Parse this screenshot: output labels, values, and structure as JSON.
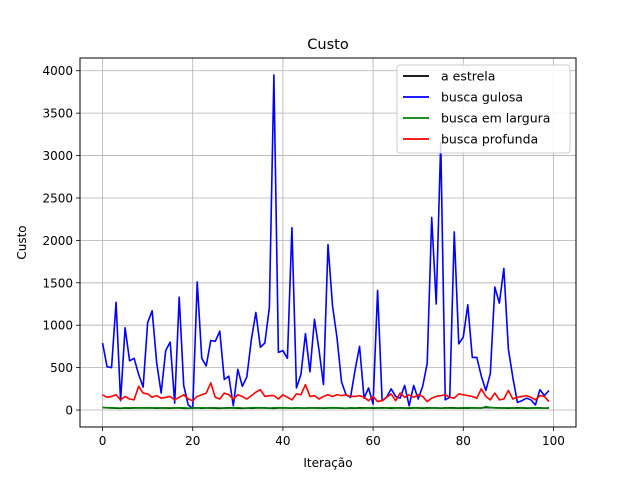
{
  "chart_data": {
    "type": "line",
    "title": "Custo",
    "xlabel": "Iteração",
    "ylabel": "Custo",
    "xlim": [
      -5,
      105
    ],
    "ylim": [
      -200,
      4150
    ],
    "xticks": [
      0,
      20,
      40,
      60,
      80,
      100
    ],
    "yticks": [
      0,
      500,
      1000,
      1500,
      2000,
      2500,
      3000,
      3500,
      4000
    ],
    "grid": true,
    "legend": "top-right",
    "x": [
      0,
      1,
      2,
      3,
      4,
      5,
      6,
      7,
      8,
      9,
      10,
      11,
      12,
      13,
      14,
      15,
      16,
      17,
      18,
      19,
      20,
      21,
      22,
      23,
      24,
      25,
      26,
      27,
      28,
      29,
      30,
      31,
      32,
      33,
      34,
      35,
      36,
      37,
      38,
      39,
      40,
      41,
      42,
      43,
      44,
      45,
      46,
      47,
      48,
      49,
      50,
      51,
      52,
      53,
      54,
      55,
      56,
      57,
      58,
      59,
      60,
      61,
      62,
      63,
      64,
      65,
      66,
      67,
      68,
      69,
      70,
      71,
      72,
      73,
      74,
      75,
      76,
      77,
      78,
      79,
      80,
      81,
      82,
      83,
      84,
      85,
      86,
      87,
      88,
      89,
      90,
      91,
      92,
      93,
      94,
      95,
      96,
      97,
      98,
      99
    ],
    "series": [
      {
        "name": "a estrela",
        "color": "#000000",
        "values": [
          30,
          26,
          24,
          22,
          20,
          24,
          22,
          26,
          25,
          24,
          26,
          24,
          22,
          24,
          25,
          22,
          26,
          24,
          22,
          20,
          24,
          26,
          22,
          24,
          25,
          22,
          20,
          24,
          26,
          25,
          22,
          20,
          24,
          22,
          24,
          26,
          25,
          22,
          20,
          24,
          26,
          24,
          22,
          25,
          24,
          22,
          26,
          24,
          25,
          22,
          24,
          26,
          25,
          22,
          20,
          24,
          22,
          26,
          25,
          24,
          22,
          24,
          26,
          25,
          22,
          24,
          26,
          24,
          22,
          25,
          24,
          22,
          26,
          24,
          25,
          22,
          24,
          26,
          25,
          22,
          24,
          22,
          26,
          24,
          25,
          30,
          28,
          26,
          25,
          24,
          22,
          24,
          26,
          25,
          22,
          24,
          26,
          25,
          22,
          24
        ]
      },
      {
        "name": "busca gulosa",
        "color": "#0000ff",
        "values": [
          790,
          510,
          500,
          1270,
          110,
          970,
          580,
          610,
          420,
          270,
          1030,
          1170,
          560,
          200,
          700,
          800,
          80,
          1330,
          290,
          60,
          20,
          1510,
          610,
          520,
          820,
          810,
          930,
          360,
          400,
          50,
          480,
          280,
          390,
          830,
          1150,
          740,
          790,
          1210,
          3950,
          680,
          700,
          610,
          2150,
          260,
          420,
          900,
          450,
          1070,
          710,
          300,
          1950,
          1230,
          850,
          330,
          180,
          150,
          470,
          750,
          140,
          260,
          70,
          1410,
          110,
          150,
          250,
          160,
          140,
          290,
          50,
          290,
          130,
          280,
          550,
          2270,
          1250,
          3160,
          120,
          150,
          2100,
          780,
          860,
          1240,
          620,
          620,
          400,
          230,
          430,
          1450,
          1260,
          1670,
          720,
          380,
          90,
          110,
          140,
          120,
          60,
          240,
          170,
          230
        ]
      },
      {
        "name": "busca em largura",
        "color": "#008000",
        "values": [
          30,
          28,
          26,
          24,
          22,
          26,
          25,
          24,
          26,
          28,
          26,
          24,
          26,
          24,
          22,
          24,
          26,
          28,
          26,
          22,
          24,
          26,
          28,
          24,
          22,
          26,
          24,
          22,
          24,
          26,
          28,
          24,
          22,
          26,
          28,
          26,
          24,
          22,
          26,
          28,
          26,
          24,
          22,
          26,
          24,
          22,
          26,
          24,
          22,
          24,
          26,
          28,
          26,
          24,
          22,
          26,
          24,
          22,
          24,
          26,
          28,
          24,
          22,
          26,
          28,
          26,
          24,
          22,
          26,
          28,
          26,
          24,
          22,
          26,
          24,
          22,
          26,
          24,
          22,
          24,
          26,
          28,
          26,
          24,
          22,
          40,
          30,
          26,
          24,
          22,
          26,
          24,
          22,
          26,
          24,
          22,
          26,
          24,
          22,
          24
        ]
      },
      {
        "name": "busca profunda",
        "color": "#ff0000",
        "values": [
          180,
          150,
          160,
          180,
          120,
          160,
          130,
          120,
          280,
          200,
          190,
          150,
          170,
          140,
          150,
          160,
          120,
          150,
          180,
          130,
          110,
          160,
          180,
          200,
          320,
          150,
          130,
          200,
          180,
          130,
          180,
          160,
          130,
          170,
          210,
          240,
          160,
          170,
          170,
          130,
          180,
          150,
          120,
          190,
          180,
          300,
          160,
          170,
          130,
          160,
          180,
          160,
          180,
          170,
          180,
          160,
          160,
          170,
          150,
          110,
          160,
          100,
          110,
          150,
          190,
          110,
          200,
          150,
          180,
          150,
          180,
          160,
          100,
          140,
          160,
          170,
          180,
          150,
          140,
          190,
          180,
          170,
          160,
          140,
          250,
          160,
          120,
          200,
          120,
          130,
          230,
          130,
          150,
          160,
          170,
          150,
          120,
          170,
          160,
          100
        ]
      }
    ]
  }
}
